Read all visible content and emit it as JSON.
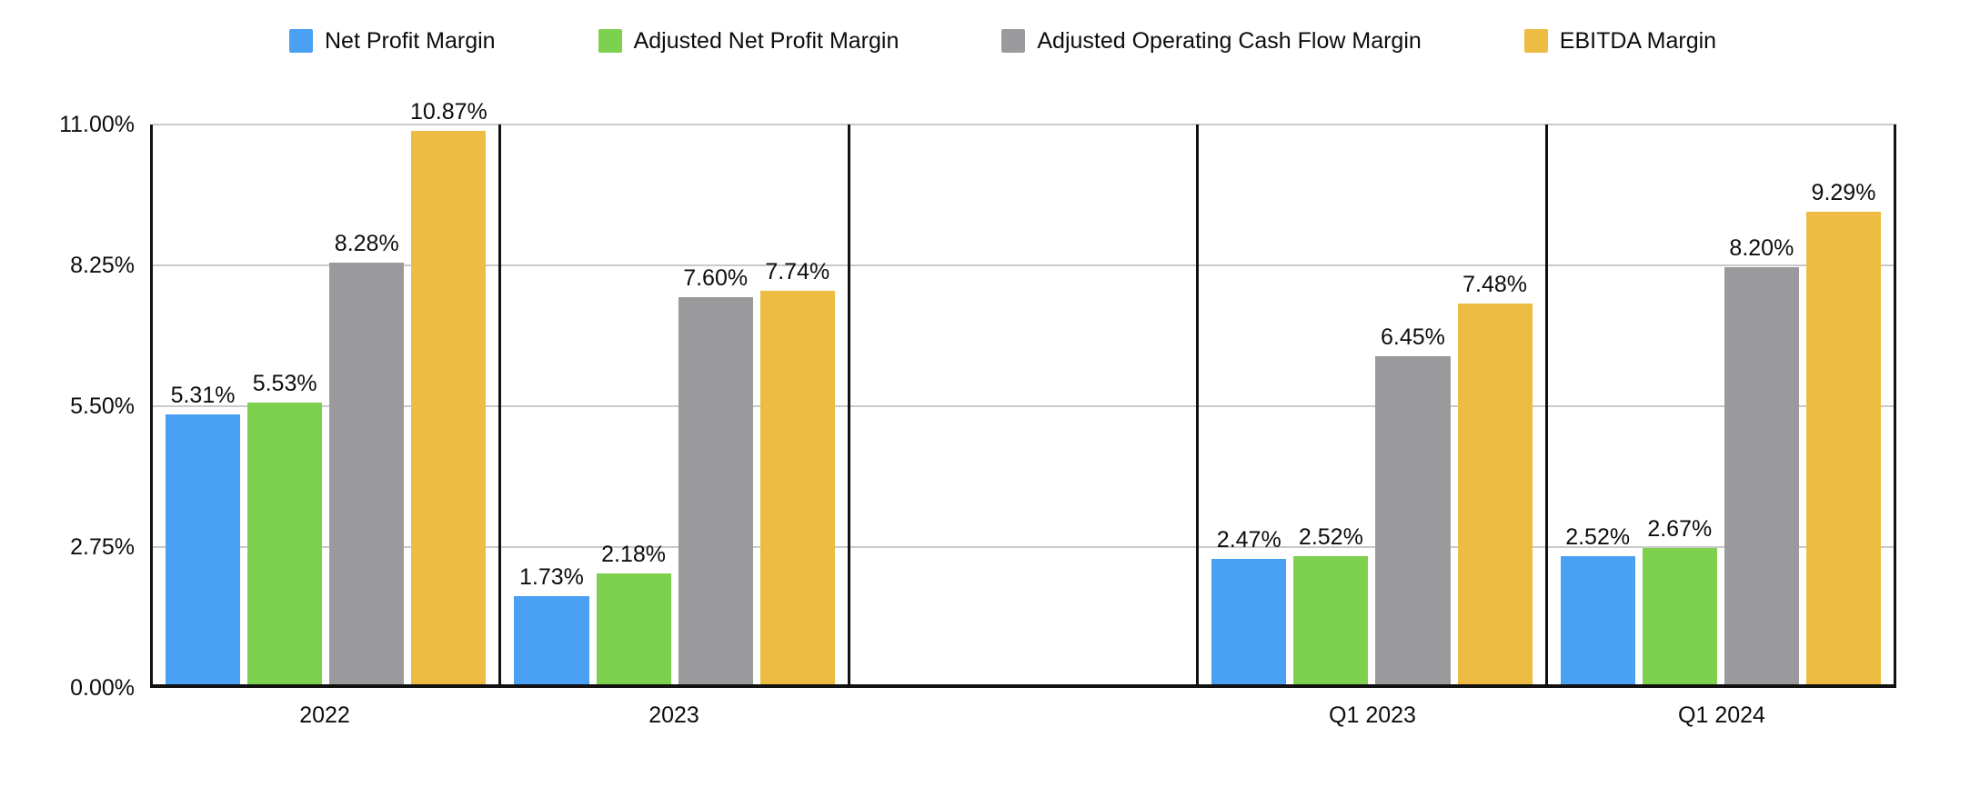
{
  "chart_data": {
    "type": "bar",
    "title": "",
    "xlabel": "",
    "ylabel": "",
    "categories": [
      "2022",
      "2023",
      "",
      "Q1 2023",
      "Q1 2024"
    ],
    "series": [
      {
        "name": "Net Profit Margin",
        "color": "#4aa0f2",
        "values": [
          5.31,
          1.73,
          null,
          2.47,
          2.52
        ],
        "value_labels": [
          "5.31%",
          "1.73%",
          null,
          "2.47%",
          "2.52%"
        ]
      },
      {
        "name": "Adjusted Net Profit Margin",
        "color": "#7dd14f",
        "values": [
          5.53,
          2.18,
          null,
          2.52,
          2.67
        ],
        "value_labels": [
          "5.53%",
          "2.18%",
          null,
          "2.52%",
          "2.67%"
        ]
      },
      {
        "name": "Adjusted Operating Cash Flow Margin",
        "color": "#9a9a9c",
        "values": [
          8.28,
          7.6,
          null,
          6.45,
          8.2
        ],
        "value_labels": [
          "8.28%",
          "7.60%",
          null,
          "6.45%",
          "8.20%"
        ]
      },
      {
        "name": "EBITDA Margin",
        "color": "#edbc43",
        "values": [
          10.87,
          7.74,
          null,
          7.48,
          9.29
        ],
        "value_labels": [
          "10.87%",
          "7.74%",
          null,
          "7.48%",
          "9.29%"
        ]
      }
    ],
    "y_axis": {
      "min": 0,
      "max": 11,
      "tick_values": [
        0,
        2.75,
        5.5,
        8.25,
        11
      ],
      "tick_labels": [
        "0.00%",
        "2.75%",
        "5.50%",
        "8.25%",
        "11.00%"
      ]
    },
    "grid": true,
    "legend_position": "top",
    "colors": {
      "axis": "#111111",
      "gridline": "#c9c9c9",
      "text": "#0d0d0d",
      "background": "#ffffff"
    }
  },
  "legend": {
    "items": [
      {
        "label": "Net Profit Margin",
        "color": "#4aa0f2"
      },
      {
        "label": "Adjusted Net Profit Margin",
        "color": "#7dd14f"
      },
      {
        "label": "Adjusted Operating Cash Flow Margin",
        "color": "#9a9a9c"
      },
      {
        "label": "EBITDA Margin",
        "color": "#edbc43"
      }
    ]
  }
}
